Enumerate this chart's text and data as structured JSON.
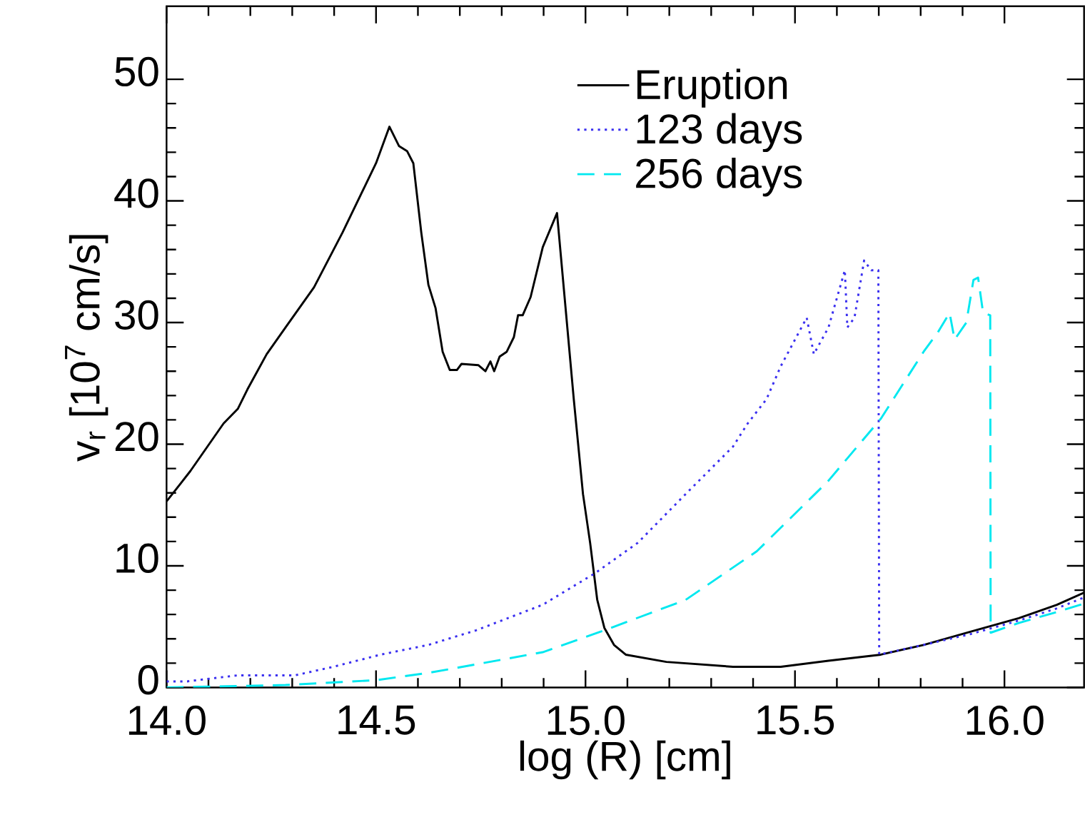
{
  "chart_data": {
    "type": "line",
    "xlabel": "log (R) [cm]",
    "ylabel": "v$_{r}$ [10$^{7}$ cm/s]",
    "xlim": [
      14.0,
      16.19
    ],
    "ylim": [
      0,
      56
    ],
    "xticks": [
      {
        "value": 14.0,
        "label": "14.0"
      },
      {
        "value": 14.5,
        "label": "14.5"
      },
      {
        "value": 15.0,
        "label": "15.0"
      },
      {
        "value": 15.5,
        "label": "15.5"
      },
      {
        "value": 16.0,
        "label": "16.0"
      }
    ],
    "yticks": [
      0,
      10,
      20,
      30,
      40,
      50
    ],
    "legend": "top right",
    "grid": false,
    "marker": "none",
    "series": [
      {
        "name": "Eruption",
        "color": "#000000",
        "line_style": "solid",
        "x": [
          14.0,
          14.057,
          14.136,
          14.17,
          14.193,
          14.239,
          14.284,
          14.352,
          14.42,
          14.5,
          14.532,
          14.555,
          14.574,
          14.589,
          14.608,
          14.625,
          14.642,
          14.659,
          14.676,
          14.693,
          14.704,
          14.744,
          14.761,
          14.773,
          14.782,
          14.795,
          14.812,
          14.829,
          14.839,
          14.85,
          14.869,
          14.898,
          14.932,
          14.972,
          14.994,
          15.011,
          15.028,
          15.045,
          15.068,
          15.096,
          15.193,
          15.352,
          15.466,
          15.58,
          15.705,
          15.807,
          15.92,
          16.034,
          16.125,
          16.19
        ],
        "values": [
          15.3,
          17.8,
          21.7,
          22.9,
          24.5,
          27.4,
          29.6,
          32.9,
          37.4,
          43.1,
          46.1,
          44.5,
          44.1,
          43.1,
          37.4,
          33.1,
          31.2,
          27.6,
          26.1,
          26.1,
          26.6,
          26.5,
          26.0,
          26.8,
          26.0,
          27.2,
          27.6,
          28.8,
          30.6,
          30.6,
          32.1,
          36.2,
          39.0,
          23.7,
          15.9,
          11.9,
          7.2,
          4.9,
          3.5,
          2.7,
          2.1,
          1.7,
          1.7,
          2.2,
          2.7,
          3.5,
          4.6,
          5.7,
          6.8,
          7.8
        ]
      },
      {
        "name": "123 days",
        "color": "#3a2ff0",
        "line_style": "dotted",
        "x": [
          14.0,
          14.049,
          14.17,
          14.307,
          14.398,
          14.511,
          14.625,
          14.739,
          14.898,
          15.023,
          15.125,
          15.239,
          15.352,
          15.387,
          15.432,
          15.466,
          15.528,
          15.545,
          15.58,
          15.619,
          15.625,
          15.642,
          15.665,
          15.682,
          15.699,
          15.701,
          15.807,
          15.92,
          16.034,
          16.125,
          16.19
        ],
        "values": [
          0.5,
          0.5,
          1.0,
          1.0,
          1.7,
          2.7,
          3.5,
          4.7,
          6.8,
          9.4,
          11.9,
          15.9,
          19.8,
          21.7,
          23.7,
          26.4,
          30.4,
          27.4,
          29.6,
          34.3,
          29.6,
          30.4,
          35.1,
          34.3,
          34.3,
          2.7,
          3.5,
          4.4,
          5.5,
          6.5,
          7.4
        ]
      },
      {
        "name": "256 days",
        "color": "#00e8f0",
        "line_style": "dashed",
        "x": [
          14.0,
          14.284,
          14.5,
          14.625,
          14.739,
          14.898,
          15.045,
          15.239,
          15.409,
          15.58,
          15.705,
          15.807,
          15.841,
          15.869,
          15.881,
          15.909,
          15.926,
          15.937,
          15.949,
          15.966,
          15.967,
          16.034,
          16.125,
          16.19
        ],
        "values": [
          0.0,
          0.2,
          0.6,
          1.2,
          1.9,
          2.9,
          4.7,
          7.2,
          11.2,
          17.0,
          22.1,
          27.6,
          29.2,
          30.8,
          28.6,
          30.0,
          33.5,
          33.7,
          30.8,
          30.6,
          4.5,
          5.3,
          6.2,
          6.9
        ]
      }
    ]
  }
}
